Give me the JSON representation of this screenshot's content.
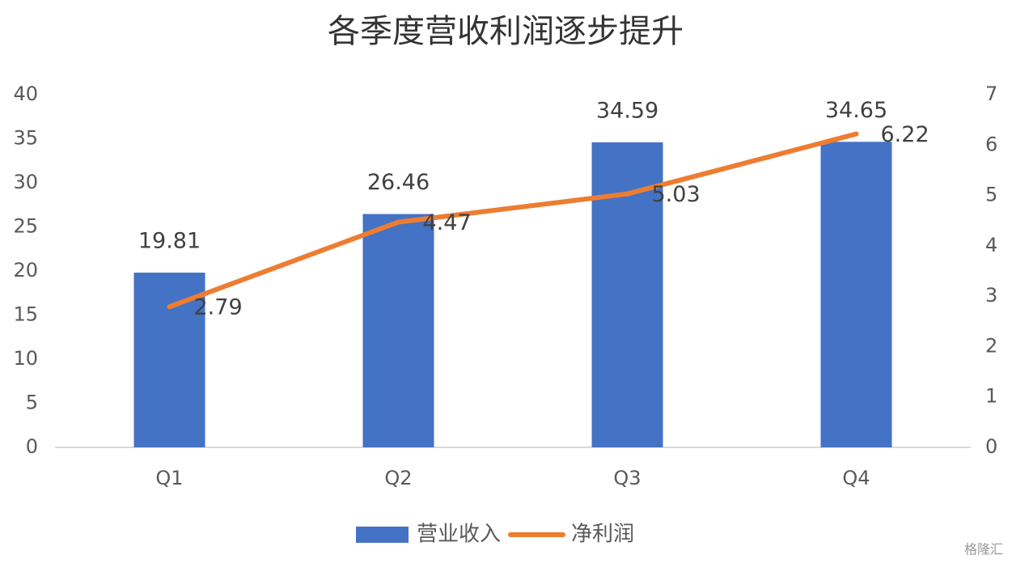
{
  "chart_data": {
    "type": "bar-line",
    "title": "各季度营收利润逐步提升",
    "categories": [
      "Q1",
      "Q2",
      "Q3",
      "Q4"
    ],
    "series": [
      {
        "name": "营业收入",
        "type": "bar",
        "color": "#4472c4",
        "values": [
          19.81,
          26.46,
          34.59,
          34.65
        ]
      },
      {
        "name": "净利润",
        "type": "line",
        "color": "#ed7d31",
        "axis": "y2",
        "values": [
          2.79,
          4.47,
          5.03,
          6.22
        ]
      }
    ],
    "ylim": [
      0,
      40
    ],
    "yticks": [
      0,
      5,
      10,
      15,
      20,
      25,
      30,
      35,
      40
    ],
    "y2lim": [
      0,
      7
    ],
    "y2ticks": [
      0,
      1,
      2,
      3,
      4,
      5,
      6,
      7
    ],
    "grid": false,
    "legend": "bottom",
    "watermark": "格隆汇"
  }
}
